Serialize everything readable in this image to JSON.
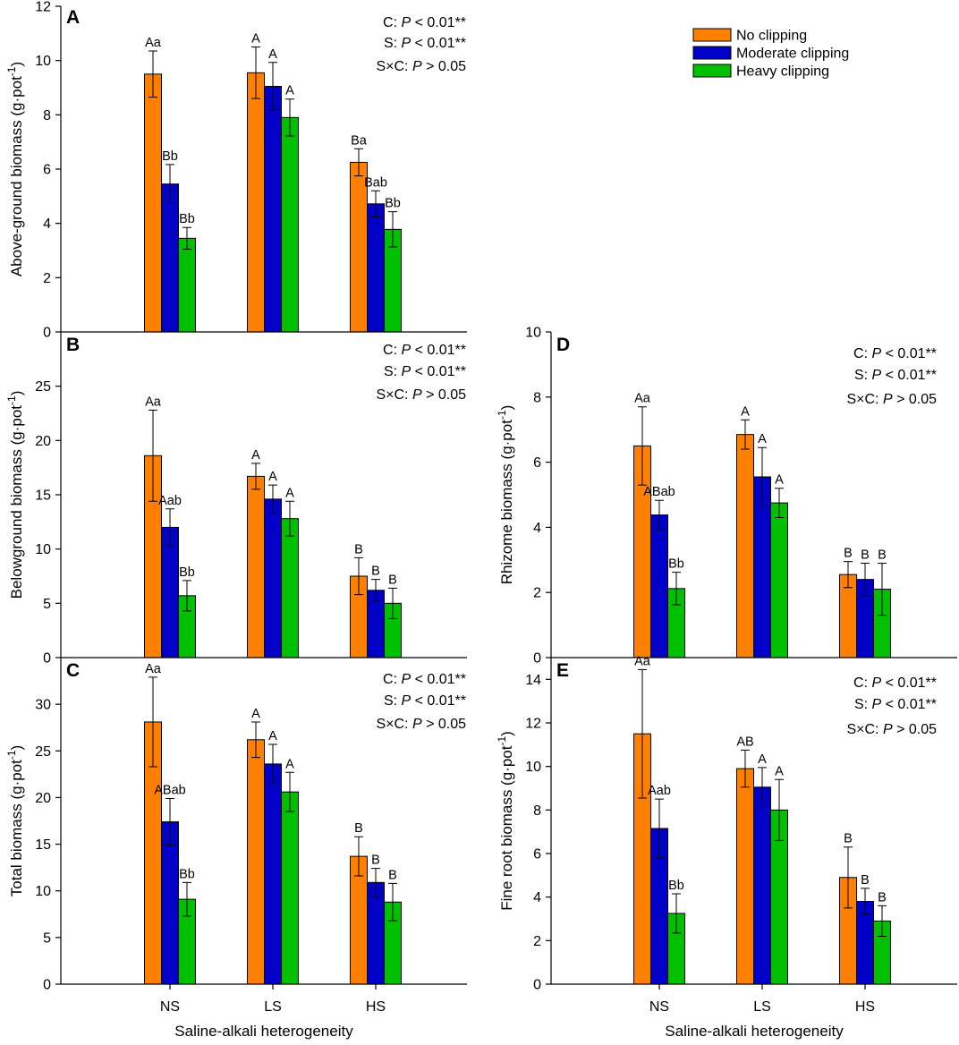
{
  "chart_data": [
    {
      "panel": "A",
      "type": "bar",
      "categories": [
        "NS",
        "LS",
        "HS"
      ],
      "ylabel": "Above-ground biomass (g·pot",
      "ylabel_sup": "-1",
      "ylabel_close": ")",
      "ylim": [
        0,
        12
      ],
      "yticks": [
        0,
        2,
        4,
        6,
        8,
        10,
        12
      ],
      "series": [
        {
          "name": "No clipping",
          "values": [
            9.5,
            9.55,
            6.25
          ],
          "errors": [
            0.85,
            0.95,
            0.5
          ],
          "labels": [
            "Aa",
            "A",
            "Ba"
          ]
        },
        {
          "name": "Moderate clipping",
          "values": [
            5.45,
            9.05,
            4.72
          ],
          "errors": [
            0.72,
            0.88,
            0.48
          ],
          "labels": [
            "Bb",
            "A",
            "Bab"
          ]
        },
        {
          "name": "Heavy clipping",
          "values": [
            3.45,
            7.9,
            3.78
          ],
          "errors": [
            0.4,
            0.68,
            0.65
          ],
          "labels": [
            "Bb",
            "A",
            "Bb"
          ]
        }
      ],
      "stats": [
        {
          "pre": "C: ",
          "p": "P",
          "post": " < 0.01**"
        },
        {
          "pre": "S: ",
          "p": "P",
          "post": " < 0.01**"
        },
        {
          "pre": "S×C: ",
          "p": "P",
          "post": " > 0.05"
        }
      ]
    },
    {
      "panel": "B",
      "type": "bar",
      "categories": [
        "NS",
        "LS",
        "HS"
      ],
      "ylabel": "Belowground biomass (g·pot",
      "ylabel_sup": "-1",
      "ylabel_close": ")",
      "ylim": [
        0,
        30
      ],
      "yticks": [
        0,
        5,
        10,
        15,
        20,
        25
      ],
      "series": [
        {
          "name": "No clipping",
          "values": [
            18.6,
            16.7,
            7.5
          ],
          "errors": [
            4.2,
            1.2,
            1.7
          ],
          "labels": [
            "Aa",
            "A",
            "B"
          ]
        },
        {
          "name": "Moderate clipping",
          "values": [
            12.0,
            14.6,
            6.2
          ],
          "errors": [
            1.7,
            1.3,
            1.0
          ],
          "labels": [
            "Aab",
            "A",
            "B"
          ]
        },
        {
          "name": "Heavy clipping",
          "values": [
            5.7,
            12.8,
            5.0
          ],
          "errors": [
            1.4,
            1.6,
            1.4
          ],
          "labels": [
            "Bb",
            "A",
            "B"
          ]
        }
      ],
      "stats": [
        {
          "pre": "C: ",
          "p": "P",
          "post": " < 0.01**"
        },
        {
          "pre": "S: ",
          "p": "P",
          "post": " < 0.01**"
        },
        {
          "pre": "S×C: ",
          "p": "P",
          "post": " > 0.05"
        }
      ]
    },
    {
      "panel": "C",
      "type": "bar",
      "categories": [
        "NS",
        "LS",
        "HS"
      ],
      "ylabel": "Total biomass (g·pot",
      "ylabel_sup": "-1",
      "ylabel_close": ")",
      "xlabel": "Saline-alkali heterogeneity",
      "ylim": [
        0,
        35
      ],
      "yticks": [
        0,
        5,
        10,
        15,
        20,
        25,
        30
      ],
      "series": [
        {
          "name": "No clipping",
          "values": [
            28.1,
            26.2,
            13.7
          ],
          "errors": [
            4.8,
            1.9,
            2.1
          ],
          "labels": [
            "Aa",
            "A",
            "B"
          ]
        },
        {
          "name": "Moderate clipping",
          "values": [
            17.4,
            23.6,
            10.9
          ],
          "errors": [
            2.5,
            2.1,
            1.5
          ],
          "labels": [
            "ABab",
            "A",
            "B"
          ]
        },
        {
          "name": "Heavy clipping",
          "values": [
            9.1,
            20.6,
            8.8
          ],
          "errors": [
            1.8,
            2.1,
            2.0
          ],
          "labels": [
            "Bb",
            "A",
            "B"
          ]
        }
      ],
      "stats": [
        {
          "pre": "C: ",
          "p": "P",
          "post": " < 0.01**"
        },
        {
          "pre": "S: ",
          "p": "P",
          "post": " < 0.01**"
        },
        {
          "pre": "S×C: ",
          "p": "P",
          "post": " > 0.05"
        }
      ]
    },
    {
      "panel": "D",
      "type": "bar",
      "categories": [
        "NS",
        "LS",
        "HS"
      ],
      "ylabel": "Rhizome biomass (g·pot",
      "ylabel_sup": "-1",
      "ylabel_close": ")",
      "ylim": [
        0,
        10
      ],
      "yticks": [
        0,
        2,
        4,
        6,
        8,
        10
      ],
      "series": [
        {
          "name": "No clipping",
          "values": [
            6.5,
            6.85,
            2.55
          ],
          "errors": [
            1.2,
            0.45,
            0.4
          ],
          "labels": [
            "Aa",
            "A",
            "B"
          ]
        },
        {
          "name": "Moderate clipping",
          "values": [
            4.38,
            5.55,
            2.4
          ],
          "errors": [
            0.45,
            0.9,
            0.5
          ],
          "labels": [
            "ABab",
            "A",
            "B"
          ]
        },
        {
          "name": "Heavy clipping",
          "values": [
            2.12,
            4.75,
            2.1
          ],
          "errors": [
            0.5,
            0.45,
            0.8
          ],
          "labels": [
            "Bb",
            "A",
            "B"
          ]
        }
      ],
      "stats": [
        {
          "pre": "C: ",
          "p": "P",
          "post": " < 0.01**"
        },
        {
          "pre": "S: ",
          "p": "P",
          "post": " < 0.01**"
        },
        {
          "pre": "S×C: ",
          "p": "P",
          "post": " > 0.05"
        }
      ]
    },
    {
      "panel": "E",
      "type": "bar",
      "categories": [
        "NS",
        "LS",
        "HS"
      ],
      "ylabel": "Fine root biomass (g·pot",
      "ylabel_sup": "-1",
      "ylabel_close": ")",
      "xlabel": "Saline-alkali heterogeneity",
      "ylim": [
        0,
        15
      ],
      "yticks": [
        0,
        2,
        4,
        6,
        8,
        10,
        12,
        14
      ],
      "series": [
        {
          "name": "No clipping",
          "values": [
            11.5,
            9.9,
            4.9
          ],
          "errors": [
            2.95,
            0.85,
            1.4
          ],
          "labels": [
            "Aa",
            "AB",
            "B"
          ]
        },
        {
          "name": "Moderate clipping",
          "values": [
            7.15,
            9.05,
            3.8
          ],
          "errors": [
            1.35,
            0.9,
            0.6
          ],
          "labels": [
            "Aab",
            "A",
            "B"
          ]
        },
        {
          "name": "Heavy clipping",
          "values": [
            3.25,
            8.0,
            2.9
          ],
          "errors": [
            0.9,
            1.4,
            0.7
          ],
          "labels": [
            "Bb",
            "A",
            "B"
          ]
        }
      ],
      "stats": [
        {
          "pre": "C: ",
          "p": "P",
          "post": " < 0.01**"
        },
        {
          "pre": "S: ",
          "p": "P",
          "post": " < 0.01**"
        },
        {
          "pre": "S×C: ",
          "p": "P",
          "post": " > 0.05"
        }
      ]
    }
  ],
  "legend": [
    {
      "name": "No clipping",
      "color": "#FF8000"
    },
    {
      "name": "Moderate clipping",
      "color": "#0000C8"
    },
    {
      "name": "Heavy clipping",
      "color": "#00C000"
    }
  ]
}
